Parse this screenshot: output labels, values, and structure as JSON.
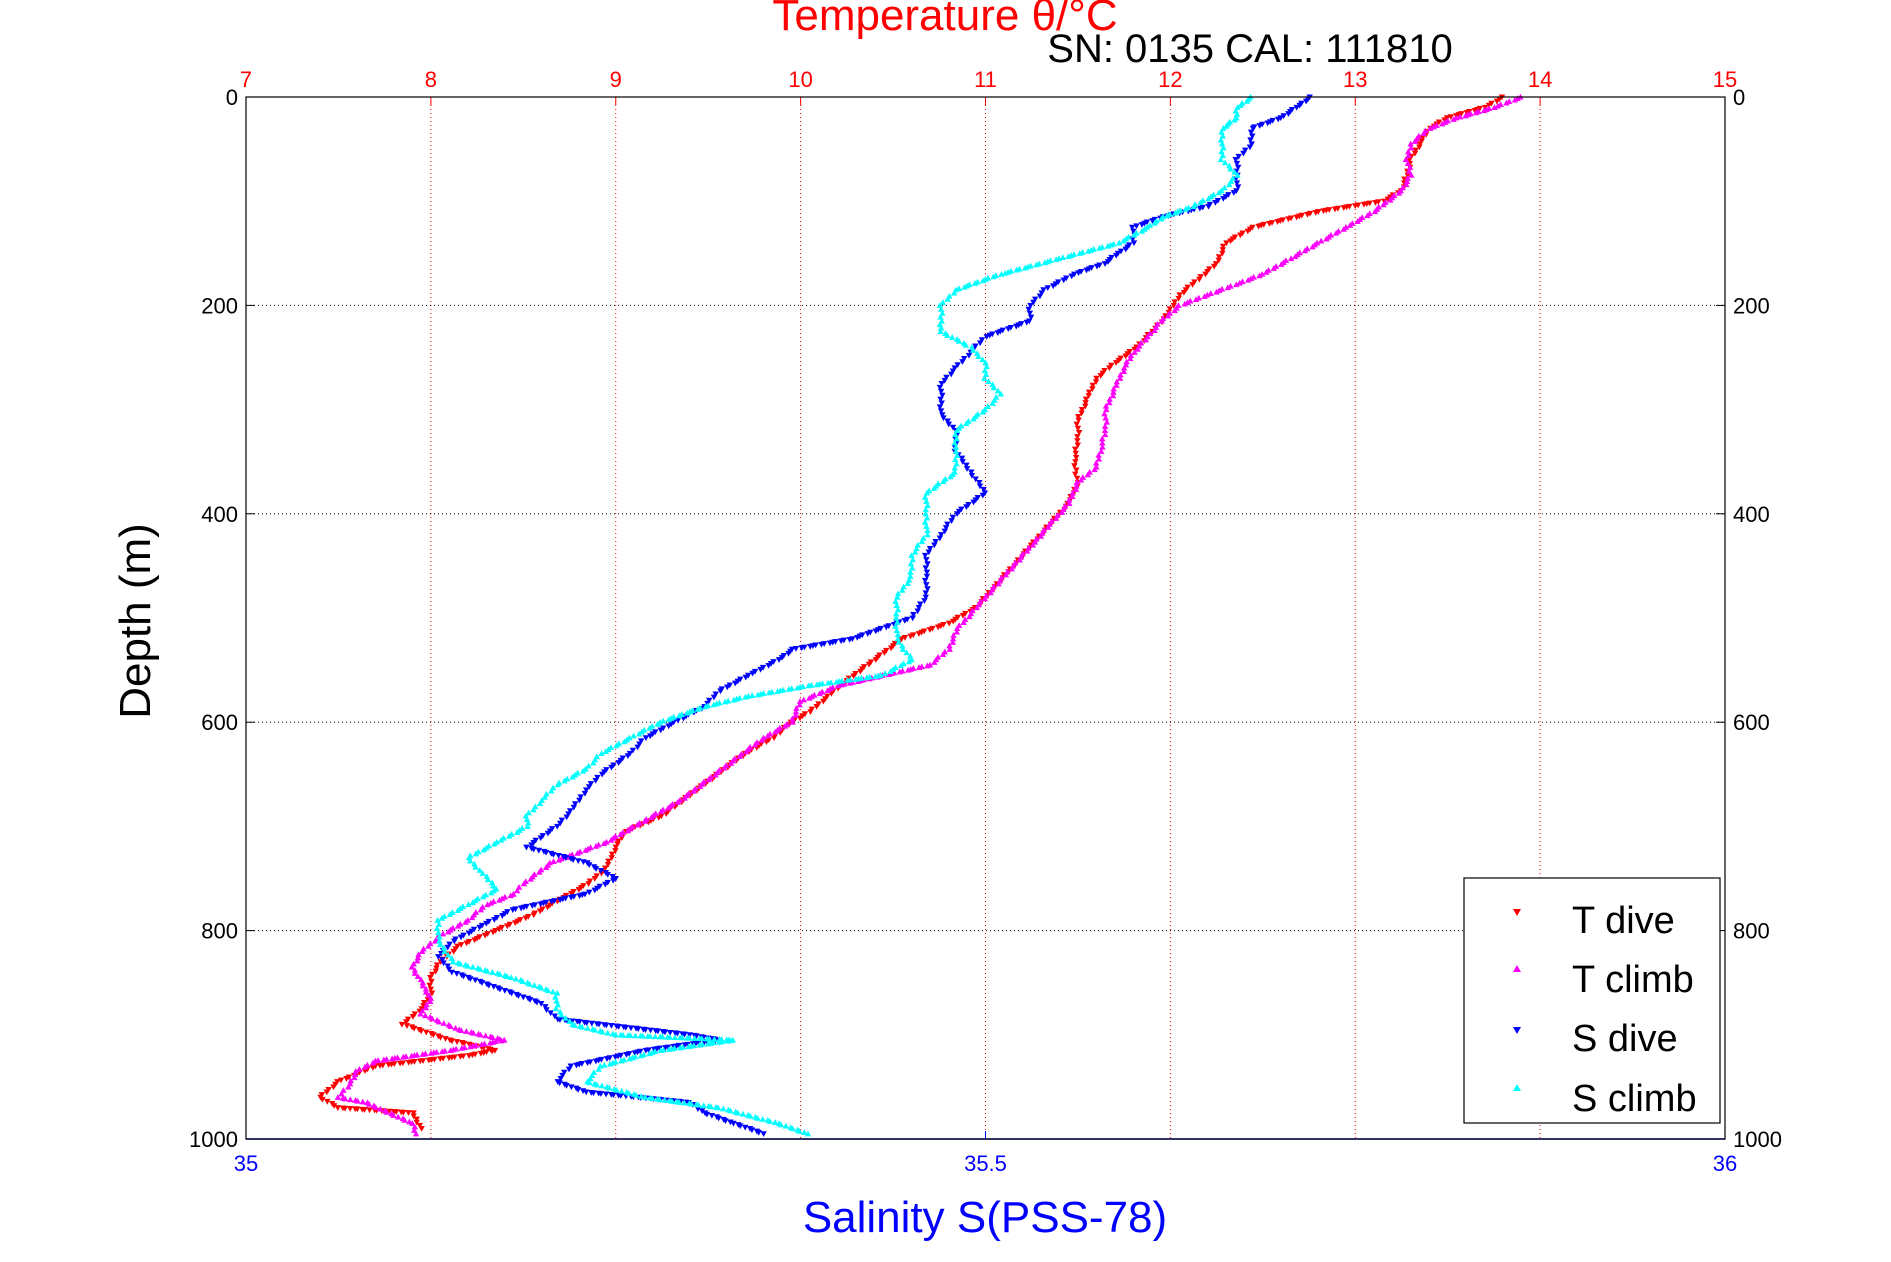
{
  "chart_data": {
    "type": "scatter",
    "title": "Temperature θ/°C",
    "subtitle": "SN: 0135  CAL: 111810",
    "xlabel_bottom": "Salinity S(PSS-78)",
    "xlabel_top": "Temperature θ/°C",
    "ylabel": "Depth (m)",
    "x_bottom_lim": [
      35,
      36
    ],
    "x_top_lim": [
      7,
      15
    ],
    "ylim": [
      0,
      1000
    ],
    "y_reversed": true,
    "x_bottom_ticks": [
      "35",
      "35.5",
      "36"
    ],
    "x_top_ticks": [
      "7",
      "8",
      "9",
      "10",
      "11",
      "12",
      "13",
      "14",
      "15"
    ],
    "y_ticks": [
      "0",
      "200",
      "400",
      "600",
      "800",
      "1000"
    ],
    "grid": true,
    "legend_position": "bottom-right",
    "colors": {
      "temperature_axis": "#ff0000",
      "salinity_axis": "#0000ff",
      "t_dive": "#ff0000",
      "t_climb": "#ff00ff",
      "s_dive": "#0000ff",
      "s_climb": "#00ffff",
      "grid_temperature": "#ff0000",
      "grid_depth": "#000000"
    },
    "series": [
      {
        "name": "T dive",
        "axis": "temperature",
        "marker": "triangle-down",
        "color": "#ff0000",
        "points": [
          [
            13.8,
            0
          ],
          [
            13.7,
            10
          ],
          [
            13.5,
            20
          ],
          [
            13.4,
            30
          ],
          [
            13.35,
            45
          ],
          [
            13.3,
            60
          ],
          [
            13.28,
            75
          ],
          [
            13.25,
            90
          ],
          [
            13.15,
            100
          ],
          [
            12.8,
            110
          ],
          [
            12.45,
            125
          ],
          [
            12.3,
            140
          ],
          [
            12.25,
            160
          ],
          [
            12.15,
            175
          ],
          [
            12.05,
            190
          ],
          [
            11.98,
            210
          ],
          [
            11.9,
            225
          ],
          [
            11.82,
            240
          ],
          [
            11.7,
            255
          ],
          [
            11.6,
            270
          ],
          [
            11.55,
            290
          ],
          [
            11.5,
            310
          ],
          [
            11.5,
            330
          ],
          [
            11.48,
            350
          ],
          [
            11.5,
            370
          ],
          [
            11.45,
            390
          ],
          [
            11.35,
            410
          ],
          [
            11.25,
            430
          ],
          [
            11.15,
            450
          ],
          [
            11.05,
            470
          ],
          [
            10.95,
            490
          ],
          [
            10.8,
            505
          ],
          [
            10.55,
            520
          ],
          [
            10.4,
            540
          ],
          [
            10.25,
            560
          ],
          [
            10.15,
            575
          ],
          [
            10.05,
            590
          ],
          [
            9.95,
            600
          ],
          [
            9.85,
            615
          ],
          [
            9.7,
            630
          ],
          [
            9.55,
            650
          ],
          [
            9.4,
            670
          ],
          [
            9.25,
            690
          ],
          [
            9.05,
            705
          ],
          [
            9.0,
            720
          ],
          [
            8.95,
            740
          ],
          [
            8.85,
            755
          ],
          [
            8.7,
            770
          ],
          [
            8.55,
            785
          ],
          [
            8.35,
            800
          ],
          [
            8.15,
            815
          ],
          [
            8.05,
            830
          ],
          [
            8.0,
            845
          ],
          [
            8.0,
            860
          ],
          [
            7.95,
            875
          ],
          [
            7.85,
            890
          ],
          [
            8.1,
            905
          ],
          [
            8.35,
            915
          ],
          [
            8.2,
            920
          ],
          [
            7.7,
            930
          ],
          [
            7.5,
            945
          ],
          [
            7.4,
            960
          ],
          [
            7.5,
            970
          ],
          [
            7.9,
            975
          ],
          [
            7.95,
            990
          ]
        ]
      },
      {
        "name": "T climb",
        "axis": "temperature",
        "marker": "triangle-up",
        "color": "#ff00ff",
        "points": [
          [
            13.9,
            0
          ],
          [
            13.75,
            10
          ],
          [
            13.55,
            20
          ],
          [
            13.4,
            30
          ],
          [
            13.3,
            45
          ],
          [
            13.28,
            60
          ],
          [
            13.3,
            75
          ],
          [
            13.25,
            90
          ],
          [
            13.1,
            110
          ],
          [
            12.95,
            125
          ],
          [
            12.8,
            140
          ],
          [
            12.65,
            155
          ],
          [
            12.5,
            170
          ],
          [
            12.35,
            180
          ],
          [
            12.2,
            190
          ],
          [
            12.05,
            200
          ],
          [
            11.95,
            215
          ],
          [
            11.88,
            230
          ],
          [
            11.8,
            245
          ],
          [
            11.75,
            260
          ],
          [
            11.7,
            280
          ],
          [
            11.65,
            300
          ],
          [
            11.65,
            320
          ],
          [
            11.62,
            340
          ],
          [
            11.6,
            355
          ],
          [
            11.5,
            370
          ],
          [
            11.45,
            390
          ],
          [
            11.35,
            410
          ],
          [
            11.25,
            430
          ],
          [
            11.15,
            450
          ],
          [
            11.05,
            470
          ],
          [
            10.95,
            490
          ],
          [
            10.85,
            510
          ],
          [
            10.8,
            530
          ],
          [
            10.7,
            545
          ],
          [
            10.45,
            555
          ],
          [
            10.2,
            565
          ],
          [
            10.0,
            580
          ],
          [
            9.95,
            600
          ],
          [
            9.8,
            615
          ],
          [
            9.65,
            635
          ],
          [
            9.5,
            655
          ],
          [
            9.35,
            675
          ],
          [
            9.15,
            695
          ],
          [
            8.95,
            715
          ],
          [
            8.65,
            735
          ],
          [
            8.5,
            755
          ],
          [
            8.45,
            765
          ],
          [
            8.3,
            775
          ],
          [
            8.2,
            790
          ],
          [
            8.05,
            805
          ],
          [
            7.95,
            820
          ],
          [
            7.9,
            835
          ],
          [
            7.95,
            850
          ],
          [
            8.0,
            865
          ],
          [
            7.95,
            880
          ],
          [
            8.15,
            895
          ],
          [
            8.4,
            905
          ],
          [
            8.1,
            915
          ],
          [
            7.7,
            925
          ],
          [
            7.6,
            935
          ],
          [
            7.55,
            950
          ],
          [
            7.5,
            960
          ],
          [
            7.65,
            965
          ],
          [
            7.9,
            985
          ],
          [
            7.92,
            995
          ]
        ]
      },
      {
        "name": "S dive",
        "axis": "salinity",
        "marker": "triangle-down",
        "color": "#0000ff",
        "points": [
          [
            35.72,
            0
          ],
          [
            35.71,
            10
          ],
          [
            35.7,
            20
          ],
          [
            35.68,
            30
          ],
          [
            35.68,
            45
          ],
          [
            35.67,
            60
          ],
          [
            35.67,
            75
          ],
          [
            35.67,
            90
          ],
          [
            35.65,
            105
          ],
          [
            35.62,
            115
          ],
          [
            35.6,
            125
          ],
          [
            35.6,
            140
          ],
          [
            35.59,
            150
          ],
          [
            35.58,
            160
          ],
          [
            35.56,
            170
          ],
          [
            35.54,
            185
          ],
          [
            35.53,
            200
          ],
          [
            35.53,
            215
          ],
          [
            35.5,
            230
          ],
          [
            35.49,
            245
          ],
          [
            35.48,
            260
          ],
          [
            35.47,
            275
          ],
          [
            35.47,
            290
          ],
          [
            35.47,
            305
          ],
          [
            35.48,
            320
          ],
          [
            35.48,
            340
          ],
          [
            35.49,
            360
          ],
          [
            35.5,
            380
          ],
          [
            35.48,
            400
          ],
          [
            35.47,
            420
          ],
          [
            35.46,
            440
          ],
          [
            35.46,
            460
          ],
          [
            35.46,
            480
          ],
          [
            35.45,
            500
          ],
          [
            35.41,
            520
          ],
          [
            35.37,
            530
          ],
          [
            35.36,
            540
          ],
          [
            35.34,
            555
          ],
          [
            35.32,
            570
          ],
          [
            35.31,
            585
          ],
          [
            35.29,
            600
          ],
          [
            35.27,
            615
          ],
          [
            35.26,
            630
          ],
          [
            35.24,
            650
          ],
          [
            35.23,
            665
          ],
          [
            35.22,
            685
          ],
          [
            35.21,
            700
          ],
          [
            35.19,
            720
          ],
          [
            35.23,
            735
          ],
          [
            35.25,
            750
          ],
          [
            35.23,
            765
          ],
          [
            35.18,
            780
          ],
          [
            35.16,
            795
          ],
          [
            35.14,
            810
          ],
          [
            35.13,
            825
          ],
          [
            35.14,
            840
          ],
          [
            35.17,
            855
          ],
          [
            35.2,
            870
          ],
          [
            35.21,
            885
          ],
          [
            35.3,
            900
          ],
          [
            35.32,
            905
          ],
          [
            35.27,
            915
          ],
          [
            35.22,
            930
          ],
          [
            35.21,
            945
          ],
          [
            35.23,
            955
          ],
          [
            35.3,
            965
          ],
          [
            35.31,
            975
          ],
          [
            35.33,
            985
          ],
          [
            35.35,
            995
          ]
        ]
      },
      {
        "name": "S climb",
        "axis": "salinity",
        "marker": "triangle-up",
        "color": "#00ffff",
        "points": [
          [
            35.68,
            0
          ],
          [
            35.67,
            10
          ],
          [
            35.67,
            20
          ],
          [
            35.66,
            30
          ],
          [
            35.66,
            45
          ],
          [
            35.66,
            60
          ],
          [
            35.67,
            75
          ],
          [
            35.66,
            90
          ],
          [
            35.64,
            105
          ],
          [
            35.62,
            115
          ],
          [
            35.61,
            125
          ],
          [
            35.59,
            140
          ],
          [
            35.55,
            155
          ],
          [
            35.51,
            170
          ],
          [
            35.48,
            185
          ],
          [
            35.47,
            200
          ],
          [
            35.47,
            215
          ],
          [
            35.47,
            225
          ],
          [
            35.49,
            240
          ],
          [
            35.5,
            255
          ],
          [
            35.5,
            270
          ],
          [
            35.51,
            285
          ],
          [
            35.5,
            300
          ],
          [
            35.48,
            320
          ],
          [
            35.48,
            340
          ],
          [
            35.48,
            360
          ],
          [
            35.46,
            380
          ],
          [
            35.46,
            400
          ],
          [
            35.46,
            420
          ],
          [
            35.45,
            440
          ],
          [
            35.45,
            460
          ],
          [
            35.44,
            480
          ],
          [
            35.44,
            500
          ],
          [
            35.44,
            520
          ],
          [
            35.45,
            540
          ],
          [
            35.43,
            555
          ],
          [
            35.38,
            565
          ],
          [
            35.34,
            575
          ],
          [
            35.31,
            585
          ],
          [
            35.28,
            600
          ],
          [
            35.26,
            615
          ],
          [
            35.24,
            630
          ],
          [
            35.23,
            645
          ],
          [
            35.21,
            660
          ],
          [
            35.2,
            675
          ],
          [
            35.19,
            690
          ],
          [
            35.19,
            700
          ],
          [
            35.17,
            715
          ],
          [
            35.15,
            730
          ],
          [
            35.16,
            745
          ],
          [
            35.17,
            760
          ],
          [
            35.15,
            775
          ],
          [
            35.13,
            790
          ],
          [
            35.13,
            810
          ],
          [
            35.14,
            830
          ],
          [
            35.18,
            845
          ],
          [
            35.21,
            860
          ],
          [
            35.21,
            875
          ],
          [
            35.22,
            890
          ],
          [
            35.25,
            900
          ],
          [
            35.33,
            905
          ],
          [
            35.28,
            915
          ],
          [
            35.24,
            930
          ],
          [
            35.23,
            945
          ],
          [
            35.27,
            960
          ],
          [
            35.32,
            970
          ],
          [
            35.36,
            985
          ],
          [
            35.38,
            995
          ]
        ]
      }
    ]
  }
}
